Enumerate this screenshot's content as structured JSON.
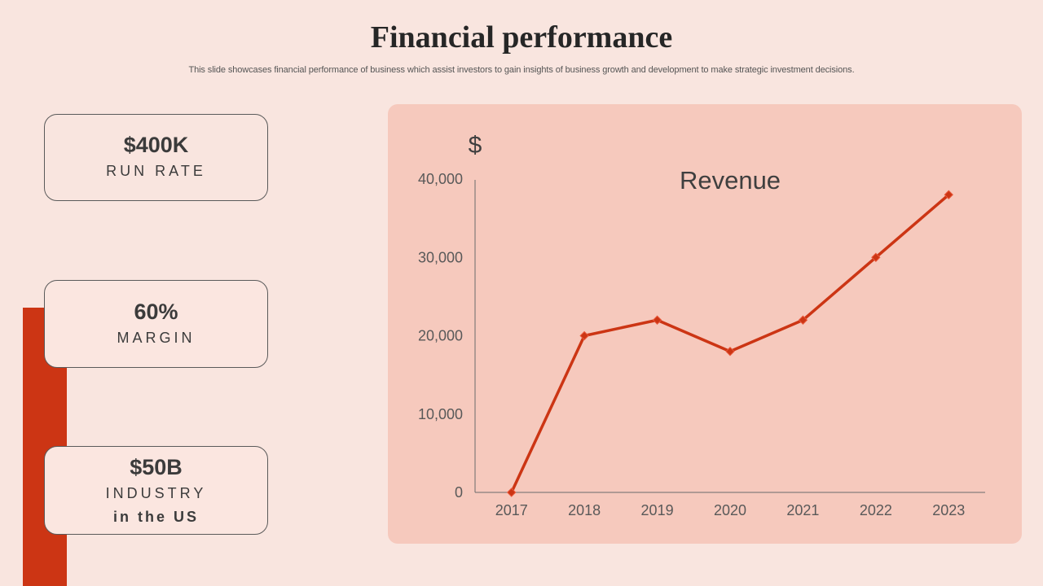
{
  "header": {
    "title": "Financial performance",
    "subtitle": "This slide showcases financial performance of business which assist investors to gain insights of business growth and development to make strategic investment decisions."
  },
  "kpis": [
    {
      "value": "$400K",
      "label": "RUN RATE"
    },
    {
      "value": "60%",
      "label": "MARGIN"
    },
    {
      "value": "$50B",
      "label": "INDUSTRY",
      "label2": "in the US"
    }
  ],
  "colors": {
    "background": "#f9e5df",
    "accent": "#cc3514",
    "panel": "#f6c9bd",
    "line": "#cc3514"
  },
  "chart_data": {
    "type": "line",
    "title": "Revenue",
    "ylabel": "$",
    "xlabel": "",
    "categories": [
      "2017",
      "2018",
      "2019",
      "2020",
      "2021",
      "2022",
      "2023"
    ],
    "series": [
      {
        "values": [
          0,
          20000,
          22000,
          18000,
          22000,
          30000,
          38000
        ]
      }
    ],
    "yticks": [
      "0",
      "10,000",
      "20,000",
      "30,000",
      "40,000"
    ],
    "ylim": [
      0,
      40000
    ],
    "grid": false,
    "legend": "none"
  }
}
